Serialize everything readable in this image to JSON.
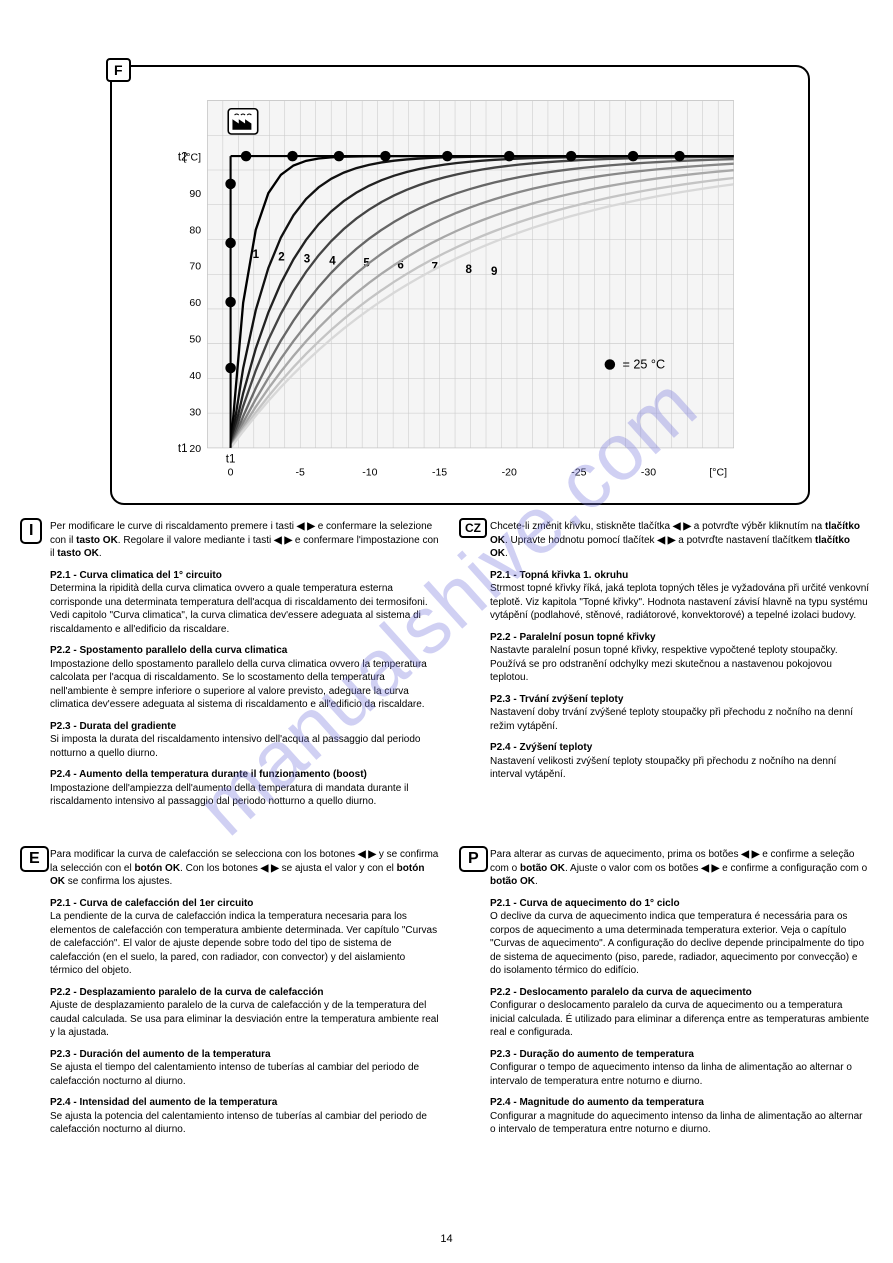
{
  "figure": {
    "badge": "F",
    "chart": {
      "type": "line-family",
      "background_color": "#f5f5f5",
      "grid_color": "#c8c8c8",
      "x_range": [
        0,
        34
      ],
      "y_range": [
        0,
        5
      ],
      "x_grid_step": 1,
      "y_grid_step": 0.5,
      "top_points_y": 4.2,
      "top_points_x": [
        2.5,
        5.5,
        8.5,
        11.5,
        15.5,
        19.5,
        23.5,
        27.5,
        30.5
      ],
      "left_axis_x": 1.5,
      "left_points_y": [
        3.8,
        2.95,
        2.1,
        1.15
      ],
      "factory_mark_x": 2.3,
      "factory_mark_y": 4.7,
      "curves": [
        {
          "color": "#000000",
          "asymptote_x": 2.6
        },
        {
          "color": "#111111",
          "asymptote_x": 5.6
        },
        {
          "color": "#222222",
          "asymptote_x": 8.6
        },
        {
          "color": "#444444",
          "asymptote_x": 11.6
        },
        {
          "color": "#666666",
          "asymptote_x": 15.6
        },
        {
          "color": "#888888",
          "asymptote_x": 19.6
        },
        {
          "color": "#a8a8a8",
          "asymptote_x": 23.6
        },
        {
          "color": "#c4c4c4",
          "asymptote_x": 27.6
        },
        {
          "color": "#d8d8d8",
          "asymptote_x": 30.6
        }
      ],
      "curve_label_numbers": [
        "1",
        "2",
        "3",
        "4",
        "5",
        "6",
        "7",
        "8",
        "9"
      ],
      "outside_temp_label": "t1",
      "room_temp_label": "t2",
      "x_axis_ticks": [
        "0",
        "-5",
        "-10",
        "-15",
        "-20",
        "-25",
        "-30",
        "[°C]"
      ],
      "y_axis_ticks": [
        "20",
        "30",
        "40",
        "50",
        "60",
        "70",
        "80",
        "90",
        "[°C]"
      ],
      "legend_dot_label": "= 25 °C",
      "line_width": 2.2
    }
  },
  "left_col_1": {
    "lang": "I",
    "p1_prefix": "Per modificare le curve di riscaldamento premere i tasti ",
    "p1_mid": " e confermare la selezione con il ",
    "p1_btn_ok": "tasto OK",
    "p1_after": ". Regolare il valore mediante i tasti ",
    "p1_end": " e confermare l'impostazione con il ",
    "p1_end2": ".",
    "p2_label": "P2.1 - Curva climatica del 1° circuito",
    "p2_body": "Determina la ripidità della curva climatica ovvero a quale temperatura esterna corrisponde una determinata temperatura dell'acqua di riscaldamento dei termosifoni. Vedi capitolo \"Curva climatica\", la curva climatica dev'essere adeguata al sistema di riscaldamento e all'edificio da riscaldare.",
    "p3_label": "P2.2 - Spostamento parallelo della curva climatica",
    "p3_body": "Impostazione dello spostamento parallelo della curva climatica ovvero la temperatura calcolata per l'acqua di riscaldamento. Se lo scostamento della temperatura nell'ambiente è sempre inferiore o superiore al valore previsto, adeguare la curva climatica dev'essere adeguata al sistema di riscaldamento e all'edificio da riscaldare.",
    "p4_label": "P2.3 - Durata del gradiente",
    "p4_body": "Si imposta la durata del riscaldamento intensivo dell'acqua al passaggio dal periodo notturno a quello diurno.",
    "p5_label": "P2.4 - Aumento della temperatura durante il funzionamento (boost)",
    "p5_body": "Impostazione dell'ampiezza dell'aumento della temperatura di mandata durante il riscaldamento intensivo al passaggio dal periodo notturno a quello diurno."
  },
  "right_col_1": {
    "lang": "CZ",
    "p1_prefix": "Chcete-li změnit křivku, stiskněte tlačítka ",
    "p1_mid": " a potvrďte výběr kliknutím na ",
    "p1_btn_ok": "tlačítko OK",
    "p1_after": ". Upravte hodnotu pomocí tlačítek ",
    "p1_end": " a potvrďte nastavení tlačítkem ",
    "p1_end2": ".",
    "p2_label": "P2.1 - Topná křivka 1. okruhu",
    "p2_body": "Strmost topné křivky říká, jaká teplota topných těles je vyžadována při určité venkovní teplotě. Viz kapitola \"Topné křivky\". Hodnota nastavení závisí hlavně na typu systému vytápění (podlahové, stěnové, radiátorové, konvektorové) a tepelné izolaci budovy.",
    "p3_label": "P2.2 - Paralelní posun topné křivky",
    "p3_body": "Nastavte paralelní posun topné křivky, respektive vypočtené teploty stoupačky. Používá se pro odstranění odchylky mezi skutečnou a nastavenou pokojovou teplotou.",
    "p4_label": "P2.3 - Trvání zvýšení teploty",
    "p4_body": "Nastavení doby trvání zvýšené teploty stoupačky při přechodu z nočního na denní režim vytápění.",
    "p5_label": "P2.4 - Zvýšení teploty",
    "p5_body": "Nastavení velikosti zvýšení teploty stoupačky při přechodu z nočního na denní interval vytápění."
  },
  "left_col_2": {
    "lang": "E",
    "p1_prefix": "Para modificar la curva de calefacción se selecciona con los botones ",
    "p1_mid": " y se confirma la selección con el ",
    "p1_btn_ok": "botón OK",
    "p1_after": ". Con los botones ",
    "p1_mid2": " se ajusta el valor y con el ",
    "p1_end": " se confirma los ajustes.",
    "p2_label": "P2.1 - Curva de calefacción del 1er circuito",
    "p2_body": "La pendiente de la curva de calefacción indica la temperatura necesaria para los elementos de calefacción con temperatura ambiente determinada. Ver capítulo \"Curvas de calefacción\". El valor de ajuste depende sobre todo del tipo de sistema de calefacción (en el suelo, la pared, con radiador, con convector) y del aislamiento térmico del objeto.",
    "p3_label": "P2.2 - Desplazamiento paralelo de la curva de calefacción",
    "p3_body": "Ajuste de desplazamiento paralelo de la curva de calefacción y de la temperatura del caudal calculada. Se usa para eliminar la desviación entre la temperatura ambiente real y la ajustada.",
    "p4_label": "P2.3 - Duración del aumento de la temperatura",
    "p4_body": "Se ajusta el tiempo del calentamiento intenso de tuberías al cambiar del periodo de calefacción nocturno al diurno.",
    "p5_label": "P2.4 - Intensidad del aumento de la temperatura",
    "p5_body": "Se ajusta la potencia del calentamiento intenso de tuberías al cambiar del periodo de calefacción nocturno al diurno."
  },
  "right_col_2": {
    "lang": "P",
    "p1_prefix": "Para alterar as curvas de aquecimento, prima os botões ",
    "p1_mid": " e confirme a seleção com o ",
    "p1_btn_ok": "botão OK",
    "p1_after": ". Ajuste o valor com os botões ",
    "p1_end": " e confirme a configuração com o ",
    "p1_end2": ".",
    "p2_label": "P2.1 - Curva de aquecimento do 1° ciclo",
    "p2_body": "O declive da curva de aquecimento indica que temperatura é necessária para os corpos de aquecimento a uma determinada temperatura exterior. Veja o capítulo \"Curvas de aquecimento\". A configuração do declive depende principalmente do tipo de sistema de aquecimento (piso, parede, radiador, aquecimento por convecção) e do isolamento térmico do edifício.",
    "p3_label": "P2.2 - Deslocamento paralelo da curva de aquecimento",
    "p3_body": "Configurar o deslocamento paralelo da curva de aquecimento ou a temperatura inicial calculada. É utilizado para eliminar a diferença entre as temperaturas ambiente real e configurada.",
    "p4_label": "P2.3 - Duração do aumento de temperatura",
    "p4_body": "Configurar o tempo de aquecimento intenso da linha de alimentação ao alternar o intervalo de temperatura entre noturno e diurno.",
    "p5_label": "P2.4 - Magnitude do aumento da temperatura",
    "p5_body": "Configurar a magnitude do aquecimento intenso da linha de alimentação ao alternar o intervalo de temperatura entre noturno e diurno."
  },
  "watermark": "manualshive.com",
  "page_number": "14"
}
